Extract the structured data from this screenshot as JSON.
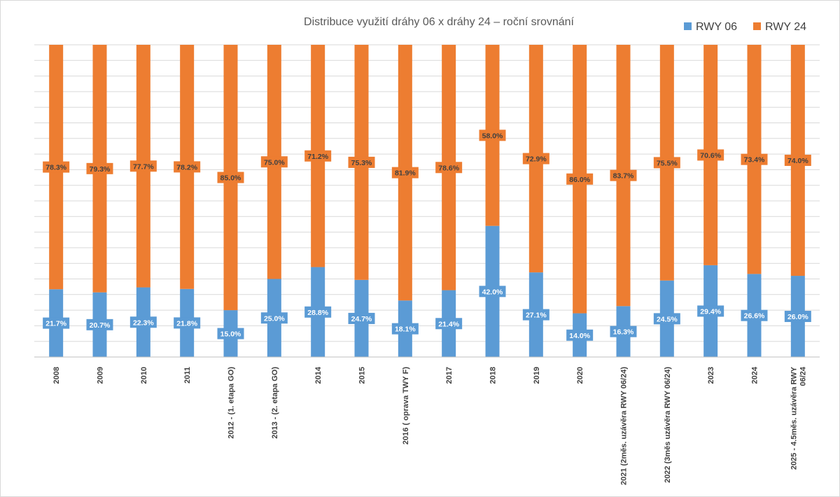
{
  "chart_data": {
    "type": "bar",
    "stacked": true,
    "title": "Distribuce využití dráhy 06 x dráhy 24 – roční srovnání",
    "categories": [
      "2008",
      "2009",
      "2010",
      "2011",
      "2012 - (1. etapa GO)",
      "2013 - (2. etapa GO)",
      "2014",
      "2015",
      "2016 ( oprava TWY F)",
      "2017",
      "2018",
      "2019",
      "2020",
      "2021 (2měs. uzávěra RWY 06/24)",
      "2022 (3měs uzávěra RWY 06/24)",
      "2023",
      "2024",
      "2025 - 4.5měs. uzávěra RWY 06/24"
    ],
    "series": [
      {
        "name": "RWY 06",
        "color": "#5B9BD5",
        "values": [
          21.7,
          20.7,
          22.3,
          21.8,
          15.0,
          25.0,
          28.8,
          24.7,
          18.1,
          21.4,
          42.0,
          27.1,
          14.0,
          16.3,
          24.5,
          29.4,
          26.6,
          26.0
        ]
      },
      {
        "name": "RWY 24",
        "color": "#ED7D31",
        "values": [
          78.3,
          79.3,
          77.7,
          78.2,
          85.0,
          75.0,
          71.2,
          75.3,
          81.9,
          78.6,
          58.0,
          72.9,
          86.0,
          83.7,
          75.5,
          70.6,
          73.4,
          74.0
        ]
      }
    ],
    "ylim": [
      0,
      100
    ],
    "grid": true,
    "legend": "top-right",
    "data_label_format": "0.0%"
  }
}
